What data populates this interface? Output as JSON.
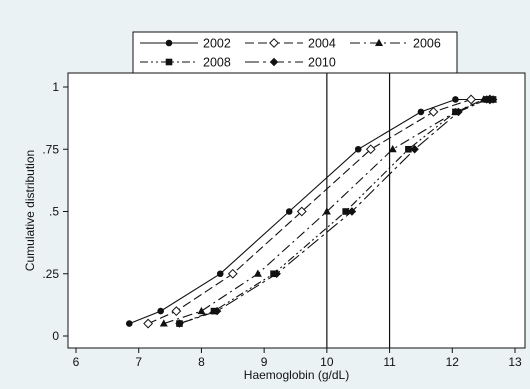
{
  "chart_data": {
    "type": "line",
    "xlabel": "Haemoglobin (g/dL)",
    "ylabel": "Cumulative distribution",
    "xlim": [
      6,
      13
    ],
    "ylim": [
      0,
      1
    ],
    "xticks": [
      "6",
      "7",
      "8",
      "9",
      "10",
      "11",
      "12",
      "13"
    ],
    "yticks": [
      "0",
      ".25",
      ".5",
      ".75",
      "1"
    ],
    "ytick_values": [
      0,
      0.25,
      0.5,
      0.75,
      1
    ],
    "reference_lines_x": [
      10,
      11
    ],
    "grid": false,
    "legend_position": "top",
    "series": [
      {
        "name": "2002",
        "line": "solid",
        "marker": "circle",
        "color": "#111111",
        "x": [
          6.85,
          7.35,
          8.3,
          9.4,
          10.5,
          11.5,
          12.05,
          12.6
        ],
        "y": [
          0.05,
          0.1,
          0.25,
          0.5,
          0.75,
          0.9,
          0.95,
          0.95
        ]
      },
      {
        "name": "2004",
        "line": "longdash",
        "marker": "diamond-open",
        "color": "#111111",
        "x": [
          7.15,
          7.6,
          8.5,
          9.6,
          10.7,
          11.7,
          12.3,
          12.6
        ],
        "y": [
          0.05,
          0.1,
          0.25,
          0.5,
          0.75,
          0.9,
          0.95,
          0.95
        ]
      },
      {
        "name": "2006",
        "line": "dashdot",
        "marker": "triangle",
        "color": "#111111",
        "x": [
          7.4,
          8.0,
          8.9,
          10.0,
          11.05,
          12.05,
          12.5,
          12.65
        ],
        "y": [
          0.05,
          0.1,
          0.25,
          0.5,
          0.75,
          0.9,
          0.95,
          0.95
        ]
      },
      {
        "name": "2008",
        "line": "dashdotdot",
        "marker": "square",
        "color": "#111111",
        "x": [
          7.65,
          8.2,
          9.15,
          10.3,
          11.3,
          12.05,
          12.55,
          12.65
        ],
        "y": [
          0.05,
          0.1,
          0.25,
          0.5,
          0.75,
          0.9,
          0.95,
          0.95
        ]
      },
      {
        "name": "2010",
        "line": "dashdot-long",
        "marker": "diamond",
        "color": "#111111",
        "x": [
          7.65,
          8.25,
          9.2,
          10.4,
          11.4,
          12.1,
          12.55,
          12.65
        ],
        "y": [
          0.05,
          0.1,
          0.25,
          0.5,
          0.75,
          0.9,
          0.95,
          0.95
        ]
      }
    ]
  }
}
